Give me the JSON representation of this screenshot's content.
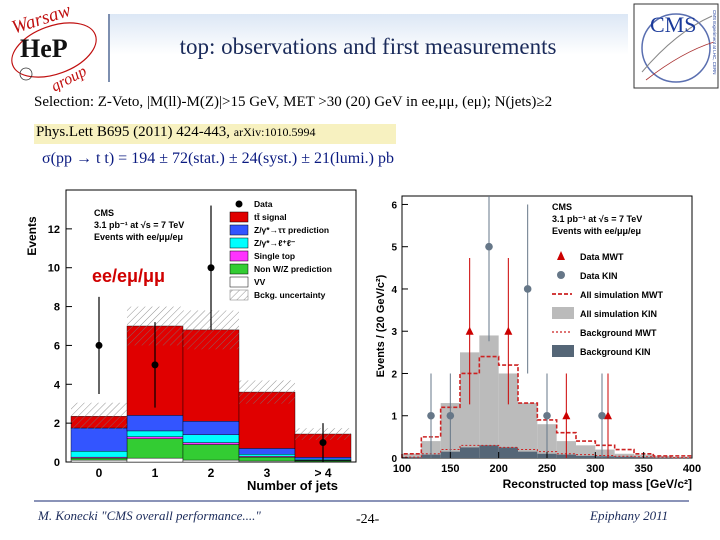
{
  "slide": {
    "title": "top: observations and first measurements",
    "selection": "Selection: Z-Veto, |M(ll)-M(Z)|>15 GeV, MET >30 (20) GeV in ee,μμ, (eμ); N(jets)≥2",
    "reference_main": "Phys.Lett B695 (2011) 424-443, ",
    "reference_arxiv": "arXiv:1010.5994",
    "cross_section": "σ(pp → t t) = 194 ± 72(stat.) ± 24(syst.) ± 21(lumi.) pb",
    "footer_author": "M. Konecki  \"CMS overall performance....\"",
    "footer_page": "-24-",
    "footer_conference": "Epiphany 2011"
  },
  "logos": {
    "left_top_text": "Warsaw",
    "left_mid_text": "HeP",
    "left_bottom_text": "group",
    "right_text": "CMS",
    "right_side_text": "CMS Experiment at LHC, CERN"
  },
  "chart_data": [
    {
      "type": "bar",
      "stacked": true,
      "title": "",
      "xlabel": "Number of jets",
      "ylabel": "Events",
      "categories": [
        "0",
        "1",
        "2",
        "3",
        "> 4"
      ],
      "ylim": [
        0,
        14
      ],
      "yticks": [
        0,
        2,
        4,
        6,
        8,
        10,
        12
      ],
      "overlay_label": "ee/eμ/μμ",
      "header_lines": [
        "CMS",
        "3.1 pb⁻¹ at √s = 7 TeV",
        "Events with ee/μμ/eμ"
      ],
      "series": [
        {
          "name": "VV",
          "color": "#ffffff",
          "values": [
            0.1,
            0.2,
            0.1,
            0.05,
            0.02
          ]
        },
        {
          "name": "Non W/Z prediction",
          "color": "#33cc33",
          "values": [
            0.1,
            1.0,
            0.8,
            0.2,
            0.05
          ]
        },
        {
          "name": "Single top",
          "color": "#ff33ff",
          "values": [
            0.05,
            0.1,
            0.1,
            0.05,
            0.02
          ]
        },
        {
          "name": "Z/γ*→ℓ⁺ℓ⁻",
          "color": "#00ffff",
          "values": [
            0.3,
            0.3,
            0.4,
            0.1,
            0.05
          ]
        },
        {
          "name": "Z/γ*→ττ prediction",
          "color": "#3355ff",
          "values": [
            1.2,
            0.8,
            0.7,
            0.3,
            0.1
          ]
        },
        {
          "name": "tt̄ signal",
          "color": "#e00000",
          "values": [
            0.6,
            4.6,
            4.7,
            2.9,
            1.2
          ]
        }
      ],
      "data": {
        "name": "Data",
        "values": [
          6,
          5,
          10,
          0,
          1
        ]
      },
      "data_errors": [
        2.5,
        2.2,
        3.2,
        0,
        1.0
      ],
      "uncertainty_label": "Bckg. uncertainty",
      "uncertainty": [
        0.7,
        1.0,
        1.0,
        0.6,
        0.3
      ]
    },
    {
      "type": "bar",
      "title": "",
      "xlabel": "Reconstructed top mass [GeV/c²]",
      "ylabel": "Events / (20 GeV/c²)",
      "x_range": [
        100,
        400
      ],
      "ylim": [
        0,
        6.2
      ],
      "yticks": [
        0,
        1,
        2,
        3,
        4,
        5,
        6
      ],
      "xticks": [
        100,
        150,
        200,
        250,
        300,
        350,
        400
      ],
      "header_lines": [
        "CMS",
        "3.1 pb⁻¹ at √s = 7 TeV",
        "Events with ee/μμ/eμ"
      ],
      "bin_centers": [
        110,
        130,
        150,
        170,
        190,
        210,
        230,
        250,
        270,
        290,
        310,
        330,
        350,
        370,
        390
      ],
      "data_mwt": {
        "name": "Data MWT",
        "color": "#cc0000",
        "values": [
          0,
          0,
          0,
          3,
          0,
          3,
          0,
          0,
          1,
          0,
          1,
          0,
          0,
          0,
          0
        ]
      },
      "data_kin": {
        "name": "Data KIN",
        "color": "#667788",
        "values": [
          0,
          1,
          1,
          0,
          5,
          0,
          4,
          1,
          0,
          0,
          1,
          0,
          0,
          0,
          0
        ]
      },
      "series": [
        {
          "name": "All simulation MWT",
          "color": "#cc2222",
          "values": [
            0.1,
            0.5,
            1.2,
            2.0,
            2.4,
            2.2,
            1.3,
            0.9,
            0.6,
            0.4,
            0.3,
            0.2,
            0.1,
            0.05,
            0.05
          ]
        },
        {
          "name": "All simulation KIN",
          "color": "#bbbbbb",
          "values": [
            0.1,
            0.4,
            1.3,
            2.5,
            2.9,
            2.0,
            1.3,
            0.8,
            0.4,
            0.3,
            0.2,
            0.1,
            0.08,
            0.05,
            0.03
          ]
        },
        {
          "name": "Background MWT",
          "color": "#cc2222",
          "values": [
            0.02,
            0.1,
            0.2,
            0.3,
            0.3,
            0.25,
            0.2,
            0.15,
            0.1,
            0.08,
            0.06,
            0.04,
            0.03,
            0.02,
            0.01
          ]
        },
        {
          "name": "Background KIN",
          "color": "#556677",
          "values": [
            0.02,
            0.08,
            0.15,
            0.25,
            0.3,
            0.25,
            0.15,
            0.1,
            0.08,
            0.05,
            0.04,
            0.03,
            0.02,
            0.01,
            0.01
          ]
        }
      ]
    }
  ]
}
